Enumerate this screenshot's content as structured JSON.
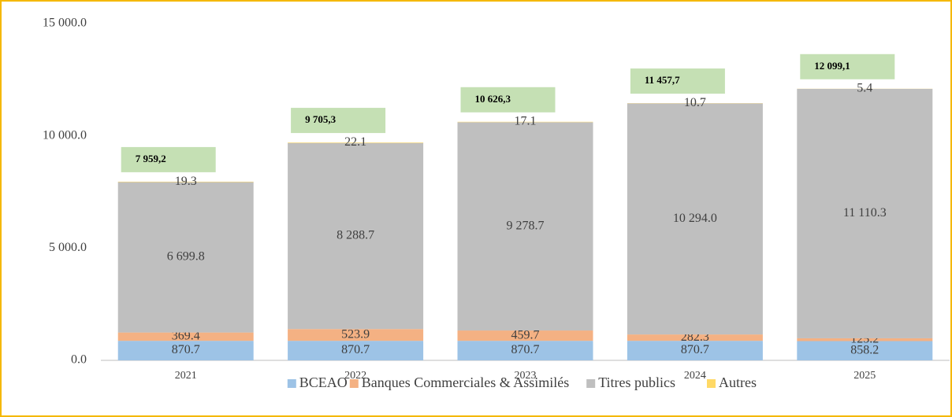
{
  "chart_data": {
    "type": "stacked_bar",
    "categories": [
      "2021",
      "2022",
      "2023",
      "2024",
      "2025"
    ],
    "series": [
      {
        "name": "BCEAO",
        "color": "#9dc3e6",
        "values": [
          870.7,
          870.7,
          870.7,
          870.7,
          858.2
        ],
        "value_labels": [
          "870.7",
          "870.7",
          "870.7",
          "870.7",
          "858.2"
        ]
      },
      {
        "name": "Banques Commerciales & Assimilés",
        "color": "#f4b183",
        "values": [
          369.4,
          523.9,
          459.7,
          282.3,
          125.2
        ],
        "value_labels": [
          "369.4",
          "523.9",
          "459.7",
          "282.3",
          "125.2"
        ]
      },
      {
        "name": "Titres publics",
        "color": "#bfbfbf",
        "values": [
          6699.8,
          8288.7,
          9278.7,
          10294.0,
          11110.3
        ],
        "value_labels": [
          "6 699.8",
          "8 288.7",
          "9 278.7",
          "10 294.0",
          "11 110.3"
        ]
      },
      {
        "name": "Autres",
        "color": "#ffd966",
        "values": [
          19.3,
          22.1,
          17.1,
          10.7,
          5.4
        ],
        "value_labels": [
          "19.3",
          "22.1",
          "17.1",
          "10.7",
          "5.4"
        ]
      }
    ],
    "totals": [
      7959.2,
      9705.3,
      10626.3,
      11457.7,
      12099.1
    ],
    "total_labels": [
      "7 959,2",
      "9 705,3",
      "10 626,3",
      "11 457,7",
      "12 099,1"
    ],
    "total_color": "#c5e0b4",
    "ylim": [
      0,
      15000
    ],
    "yticks": [
      {
        "value": 0,
        "label": "0.0"
      },
      {
        "value": 5000,
        "label": "5 000.0"
      },
      {
        "value": 10000,
        "label": "10 000.0"
      },
      {
        "value": 15000,
        "label": "15 000.0"
      }
    ],
    "legend": "bottom"
  }
}
